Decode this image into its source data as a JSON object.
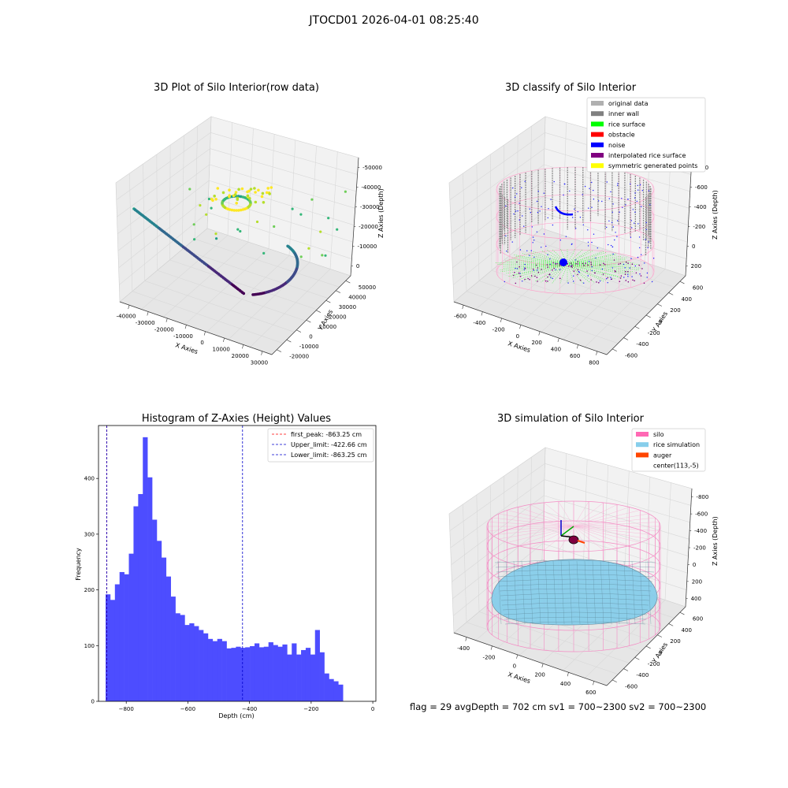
{
  "suptitle": "JTOCD01 2026-04-01 08:25:40",
  "stats_text": "flag = 29  avgDepth = 702 cm  sv1 = 700~2300  sv2 = 700~2300",
  "chart_data": [
    {
      "type": "scatter",
      "title": "3D Plot of Silo Interior(row data)",
      "xlabel": "X Axies",
      "ylabel": "Y Axies",
      "zlabel": "Z Axies (Depth)",
      "x_ticks": [
        "-40000",
        "-30000",
        "-20000",
        "-10000",
        "0",
        "10000",
        "20000",
        "30000"
      ],
      "y_ticks": [
        "-20000",
        "-10000",
        "0",
        "10000",
        "20000",
        "30000",
        "40000",
        "50000"
      ],
      "z_ticks": [
        "0",
        "-10000",
        "-20000",
        "-30000",
        "-40000",
        "-50000"
      ],
      "xlim": [
        -45000,
        32000
      ],
      "ylim": [
        -22000,
        52000
      ],
      "zlim": [
        -55000,
        2000
      ],
      "colormap": "viridis"
    },
    {
      "type": "scatter",
      "title": "3D classify of Silo Interior",
      "xlabel": "X Axies",
      "ylabel": "Y Axies",
      "zlabel": "Z Axies (Depth)",
      "x_ticks": [
        "-600",
        "-400",
        "-200",
        "0",
        "200",
        "400",
        "600",
        "800"
      ],
      "y_ticks": [
        "-600",
        "-400",
        "-200",
        "0",
        "200",
        "400",
        "600"
      ],
      "z_ticks": [
        "200",
        "0",
        "-200",
        "-400",
        "-600",
        "-800"
      ],
      "legend_position": "top-right",
      "legend": [
        {
          "label": "original data",
          "color": "#b0b0b0"
        },
        {
          "label": "inner wall",
          "color": "#808080"
        },
        {
          "label": "rice surface",
          "color": "#00ff00"
        },
        {
          "label": "obstacle",
          "color": "#ff0000"
        },
        {
          "label": "noise",
          "color": "#0000ff"
        },
        {
          "label": "interpolated rice surface",
          "color": "#800080"
        },
        {
          "label": "symmetric generated points",
          "color": "#ffff00"
        }
      ]
    },
    {
      "type": "bar",
      "title": "Histogram of Z-Axies (Height) Values",
      "xlabel": "Depth (cm)",
      "ylabel": "Frequency",
      "xlim": [
        -890,
        10
      ],
      "ylim": [
        0,
        495
      ],
      "x_ticks": [
        -800,
        -600,
        -400,
        -200,
        0
      ],
      "y_ticks": [
        0,
        100,
        200,
        300,
        400
      ],
      "bin_start": -867,
      "bin_width": 15.1,
      "bar_color": "#4d4dff",
      "values": [
        192,
        182,
        210,
        232,
        228,
        265,
        350,
        372,
        474,
        402,
        326,
        288,
        258,
        224,
        188,
        158,
        155,
        137,
        140,
        135,
        128,
        122,
        112,
        108,
        112,
        108,
        95,
        96,
        98,
        96,
        97,
        99,
        104,
        97,
        98,
        106,
        101,
        98,
        102,
        84,
        104,
        84,
        92,
        96,
        84,
        128,
        88,
        50,
        40,
        36,
        30
      ],
      "lines": [
        {
          "label": "first_peak: -863.25 cm",
          "x": -863.25,
          "color": "#ff0000"
        },
        {
          "label": "Upper_limit: -422.66 cm",
          "x": -422.66,
          "color": "#0000cc"
        },
        {
          "label": "Lower_limit: -863.25 cm",
          "x": -863.25,
          "color": "#0000cc"
        }
      ],
      "legend_position": "top-right"
    },
    {
      "type": "surface",
      "title": "3D simulation of Silo Interior",
      "xlabel": "X Axies",
      "ylabel": "Y Axies",
      "zlabel": "Z Axies (Depth)",
      "x_ticks": [
        "-400",
        "-200",
        "0",
        "200",
        "400",
        "600"
      ],
      "y_ticks": [
        "-600",
        "-400",
        "-200",
        "0",
        "200",
        "400",
        "600"
      ],
      "z_ticks": [
        "400",
        "200",
        "0",
        "-200",
        "-400",
        "-600",
        "-800"
      ],
      "legend_position": "top-right",
      "legend": [
        {
          "label": "silo",
          "color": "#ff69b4"
        },
        {
          "label": "rice simulation",
          "color": "#87ceeb"
        },
        {
          "label": "auger",
          "color": "#ff4500"
        },
        {
          "label": "center(113,-5)",
          "color": "#ffffff"
        }
      ]
    }
  ]
}
